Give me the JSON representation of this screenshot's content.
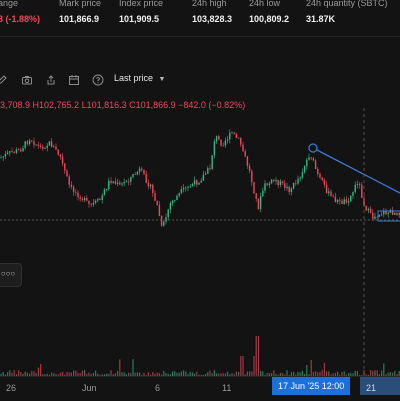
{
  "stats": [
    {
      "label": "ange",
      "value": "8 (-1.88%)",
      "negative": true
    },
    {
      "label": "Mark price",
      "value": "101,866.9"
    },
    {
      "label": "Index price",
      "value": "101,909.5"
    },
    {
      "label": "24h high",
      "value": "103,828.3"
    },
    {
      "label": "24h low",
      "value": "100,809.2"
    },
    {
      "label": "24h quantity (SBTC)",
      "value": "31.87K"
    }
  ],
  "toolbar": {
    "icons": [
      "pencil-icon",
      "camera-icon",
      "share-icon",
      "calendar-icon",
      "help-icon"
    ],
    "price_type": "Last price",
    "price_type_icon": "caret-down-icon"
  },
  "ohlc": "3,708.9 H102,765.2 L101,816.3 C101,866.9 −842.0 (−0.82%)",
  "legend_collapsed": "○○○",
  "x_axis": {
    "ticks": [
      "26",
      "Jun",
      "6",
      "11",
      "21"
    ],
    "cursor_label": "17 Jun '25   12:00"
  },
  "colors": {
    "up": "#2ebd85",
    "down": "#f6465d",
    "trendline": "#3a7bd5",
    "background": "#131313"
  }
}
